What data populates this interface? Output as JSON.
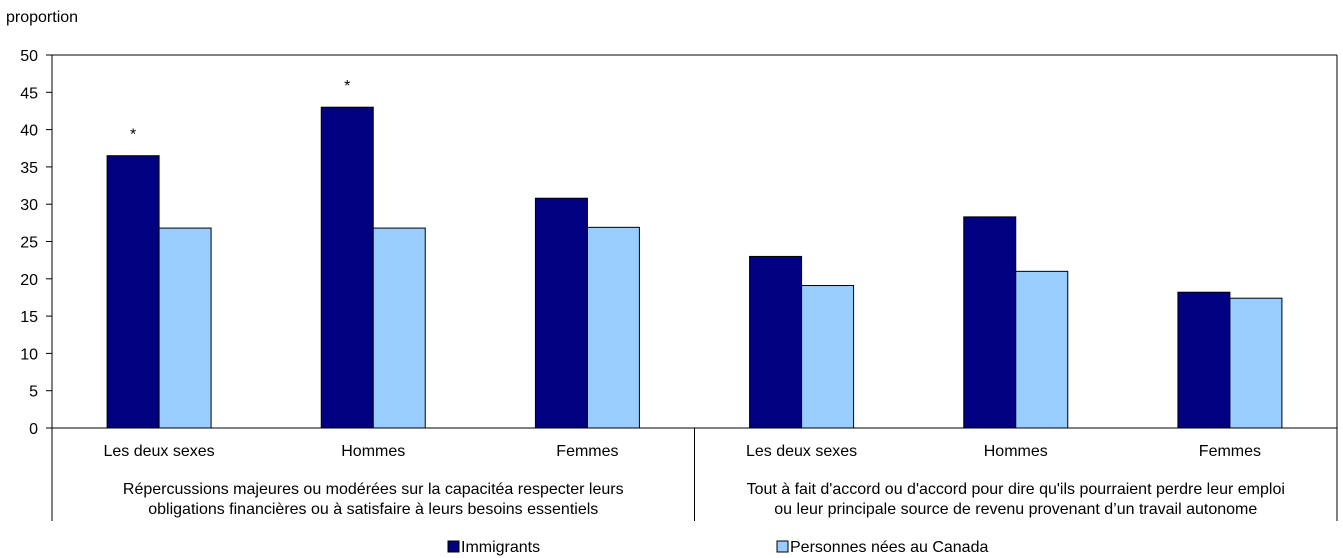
{
  "chart_data": {
    "type": "bar",
    "ylabel": "proportion",
    "ylim": [
      0,
      50
    ],
    "yticks": [
      0,
      5,
      10,
      15,
      20,
      25,
      30,
      35,
      40,
      45,
      50
    ],
    "categories": [
      "Les deux sexes",
      "Hommes",
      "Femmes",
      "Les deux sexes",
      "Hommes",
      "Femmes"
    ],
    "groups": [
      {
        "label_lines": [
          "Répercussions majeures ou modérées sur la capacitéa respecter leurs",
          "obligations financières ou à satisfaire à leurs besoins essentiels"
        ],
        "categories": [
          0,
          1,
          2
        ]
      },
      {
        "label_lines": [
          "Tout à fait d'accord ou d'accord pour dire qu'ils pourraient perdre leur emploi",
          "ou leur principale source de revenu provenant d’un travail autonome"
        ],
        "categories": [
          3,
          4,
          5
        ]
      }
    ],
    "series": [
      {
        "name": "Immigrants",
        "color": "#000080",
        "values": [
          36.5,
          43.0,
          30.8,
          23.0,
          28.3,
          18.2
        ]
      },
      {
        "name": "Personnes nées au Canada",
        "color": "#99ccff",
        "values": [
          26.8,
          26.8,
          26.9,
          19.1,
          21.0,
          17.4
        ]
      }
    ],
    "annotations": [
      {
        "category_index": 0,
        "series_index": 0,
        "text": "*"
      },
      {
        "category_index": 1,
        "series_index": 0,
        "text": "*"
      }
    ],
    "grid": false,
    "legend_position": "bottom"
  }
}
